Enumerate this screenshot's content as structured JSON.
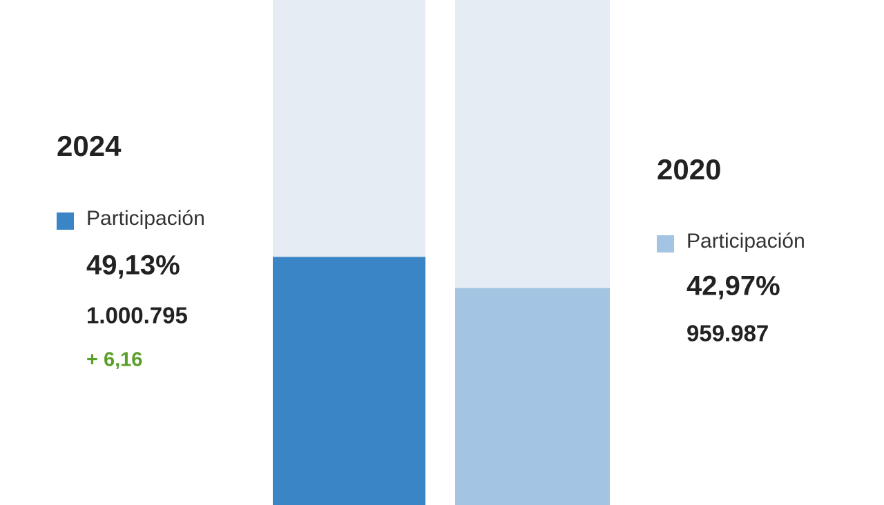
{
  "chart_data": {
    "type": "bar",
    "categories": [
      "2024",
      "2020"
    ],
    "series": [
      {
        "name": "Participación",
        "values": [
          49.13,
          42.97
        ],
        "value_labels": [
          "49,13%",
          "42,97%"
        ],
        "colors": [
          "#3a85c6",
          "#a3c5e3"
        ]
      }
    ],
    "votes": [
      1000795,
      959987
    ],
    "votes_labels": [
      "1.000.795",
      "959.987"
    ],
    "change": 6.16,
    "change_label": "+ 6,16",
    "track_color": "#e6ecf4",
    "ylim": [
      0,
      100
    ]
  }
}
